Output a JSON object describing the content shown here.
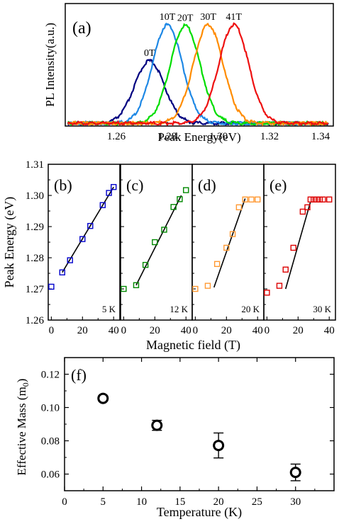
{
  "chart_data": [
    {
      "type": "line",
      "panel_label": "(a)",
      "xlabel": "Peak Energy(eV)",
      "ylabel": "PL Intensity(a.u.)",
      "xlim": [
        1.24,
        1.345
      ],
      "xticks": [
        "1.26",
        "1.28",
        "1.30",
        "1.32",
        "1.34"
      ],
      "series": [
        {
          "name": "0T",
          "center": 1.273,
          "width": 0.0058,
          "amplitude": 0.62,
          "color": "#000080"
        },
        {
          "name": "10T",
          "center": 1.28,
          "width": 0.0058,
          "amplitude": 0.98,
          "color": "#1e88e5"
        },
        {
          "name": "20T",
          "center": 1.287,
          "width": 0.0058,
          "amplitude": 0.97,
          "color": "#00dd00"
        },
        {
          "name": "30T",
          "center": 1.296,
          "width": 0.0058,
          "amplitude": 0.98,
          "color": "#ff8c00"
        },
        {
          "name": "41T",
          "center": 1.306,
          "width": 0.0058,
          "amplitude": 0.98,
          "color": "#ee1111"
        }
      ]
    },
    {
      "type": "scatter",
      "ylabel": "Peak Energy (eV)",
      "xlabel": "Magnetic field (T)",
      "ylim": [
        1.26,
        1.31
      ],
      "yticks": [
        "1.26",
        "1.27",
        "1.28",
        "1.29",
        "1.30",
        "1.31"
      ],
      "xlim": [
        -2,
        44
      ],
      "xticks": [
        "0",
        "20",
        "40"
      ],
      "panels": [
        {
          "label": "(b)",
          "temperature": "5 K",
          "color": "#0000cc",
          "x": [
            0,
            7,
            12,
            20,
            25,
            33,
            37,
            40
          ],
          "y": [
            1.2707,
            1.2753,
            1.2792,
            1.286,
            1.2902,
            1.2969,
            1.3008,
            1.3027
          ],
          "fit": [
            [
              7,
              1.2753
            ],
            [
              40,
              1.3027
            ]
          ]
        },
        {
          "label": "(c)",
          "temperature": "12 K",
          "color": "#008800",
          "x": [
            0,
            8,
            14,
            20,
            26,
            32,
            36,
            40
          ],
          "y": [
            1.27,
            1.2712,
            1.2777,
            1.285,
            1.289,
            1.2963,
            1.2988,
            1.3017
          ],
          "fit": [
            [
              8,
              1.2712
            ],
            [
              37,
              1.3
            ]
          ]
        },
        {
          "label": "(d)",
          "temperature": "20 K",
          "color": "#ff9933",
          "x": [
            0,
            8,
            14,
            20,
            24,
            28,
            32,
            36,
            40
          ],
          "y": [
            1.27,
            1.271,
            1.278,
            1.2832,
            1.2876,
            1.2962,
            1.2987,
            1.2987,
            1.2987
          ],
          "fit": [
            [
              12,
              1.2705
            ],
            [
              32,
              1.299
            ]
          ]
        },
        {
          "label": "(e)",
          "temperature": "30 K",
          "color": "#dd0000",
          "x": [
            0,
            8,
            12,
            17,
            23,
            26,
            28,
            30,
            32,
            34,
            36,
            40
          ],
          "y": [
            1.2688,
            1.271,
            1.2762,
            1.2832,
            1.2948,
            1.2962,
            1.2987,
            1.2987,
            1.2987,
            1.2987,
            1.2987,
            1.2987
          ],
          "fit": [
            [
              12,
              1.27
            ],
            [
              28,
              1.298
            ]
          ]
        }
      ]
    },
    {
      "type": "scatter",
      "panel_label": "(f)",
      "xlabel": "Temperature (K)",
      "ylabel": "Effective Mass (m",
      "ylabel_sub": "0",
      "ylabel_end": ")",
      "xlim": [
        0,
        35
      ],
      "ylim": [
        0.05,
        0.13
      ],
      "xticks": [
        "0",
        "5",
        "10",
        "15",
        "20",
        "25",
        "30"
      ],
      "yticks": [
        "0.06",
        "0.08",
        "0.10",
        "0.12"
      ],
      "x": [
        5,
        12,
        20,
        30
      ],
      "y": [
        0.1055,
        0.0893,
        0.0772,
        0.061
      ],
      "yerr": [
        0.0015,
        0.003,
        0.0075,
        0.005
      ]
    }
  ]
}
